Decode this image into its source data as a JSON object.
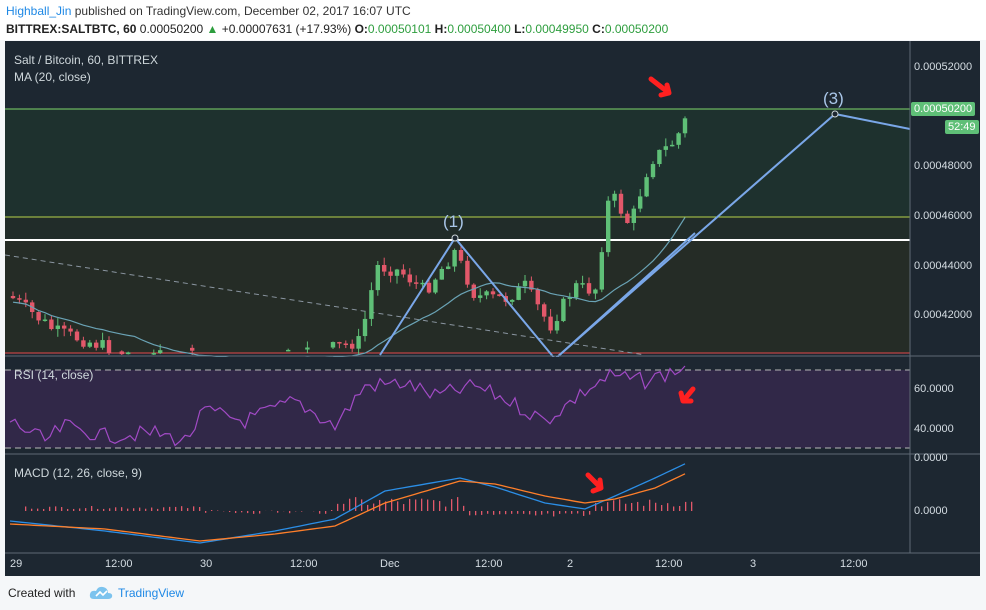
{
  "header": {
    "author": "Highball_Jin",
    "published_text": "published on TradingView.com, December 02, 2017 16:07 UTC",
    "symbol": "BITTREX:SALTBTC, 60",
    "last": "0.00050200",
    "change": "+0.00007631 (+17.93%)",
    "ohlc": [
      {
        "k": "O:",
        "v": "0.00050101"
      },
      {
        "k": "H:",
        "v": "0.00050400"
      },
      {
        "k": "L:",
        "v": "0.00049950"
      },
      {
        "k": "C:",
        "v": "0.00050200"
      }
    ]
  },
  "main_pane": {
    "title": "Salt / Bitcoin, 60, BITTREX",
    "indicator": "MA (20, close)",
    "price_ticks": [
      "0.00052000",
      "0.00048000",
      "0.00046000",
      "0.00044000",
      "0.00042000"
    ],
    "price_tag": "0.00050200",
    "countdown": "52:49",
    "annotations": [
      "(1)",
      "(3)"
    ]
  },
  "rsi_pane": {
    "title": "RSI (14, close)",
    "ticks": [
      "60.0000",
      "40.0000"
    ]
  },
  "macd_pane": {
    "title": "MACD (12, 26, close, 9)",
    "ticks": [
      "0.0000",
      "0.0000"
    ]
  },
  "time_axis": [
    "29",
    "12:00",
    "30",
    "12:00",
    "Dec",
    "12:00",
    "2",
    "12:00",
    "3",
    "12:00"
  ],
  "colors": {
    "up": "#5fbf77",
    "down": "#e2586a",
    "ma": "#6aa3b5",
    "trend": "#7aa7e8",
    "rsi": "#a14ac5",
    "macd": "#2b8ee6",
    "signal": "#ff7f2a",
    "arrow": "#ff2020"
  },
  "footer": {
    "created_with": "Created with",
    "brand": "TradingView"
  }
}
